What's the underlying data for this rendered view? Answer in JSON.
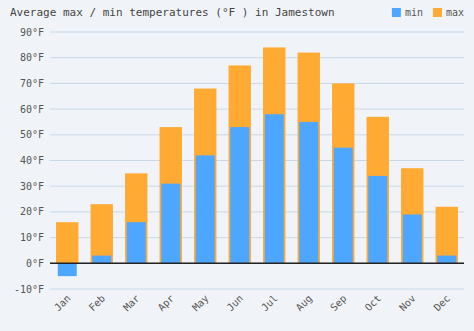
{
  "chart_data": {
    "type": "bar",
    "title": "Average max / min temperatures (°F ) in Jamestown",
    "categories": [
      "Jan",
      "Feb",
      "Mar",
      "Apr",
      "May",
      "Jun",
      "Jul",
      "Aug",
      "Sep",
      "Oct",
      "Nov",
      "Dec"
    ],
    "series": [
      {
        "name": "min",
        "color": "#4da6ff",
        "values": [
          -5,
          3,
          16,
          31,
          42,
          53,
          58,
          55,
          45,
          34,
          19,
          3
        ]
      },
      {
        "name": "max",
        "color": "#ffaa33",
        "values": [
          16,
          23,
          35,
          53,
          68,
          77,
          84,
          82,
          70,
          57,
          37,
          22
        ]
      }
    ],
    "ylim": [
      -10,
      90
    ],
    "yticks": [
      {
        "value": -10,
        "label": "-10°F"
      },
      {
        "value": 0,
        "label": "0°F"
      },
      {
        "value": 10,
        "label": "10°F"
      },
      {
        "value": 20,
        "label": "20°F"
      },
      {
        "value": 30,
        "label": "30°F"
      },
      {
        "value": 40,
        "label": "40°F"
      },
      {
        "value": 50,
        "label": "50°F"
      },
      {
        "value": 60,
        "label": "60°F"
      },
      {
        "value": 70,
        "label": "70°F"
      },
      {
        "value": 80,
        "label": "80°F"
      },
      {
        "value": 90,
        "label": "90°F"
      }
    ],
    "grid": true,
    "legend": "upper right"
  }
}
